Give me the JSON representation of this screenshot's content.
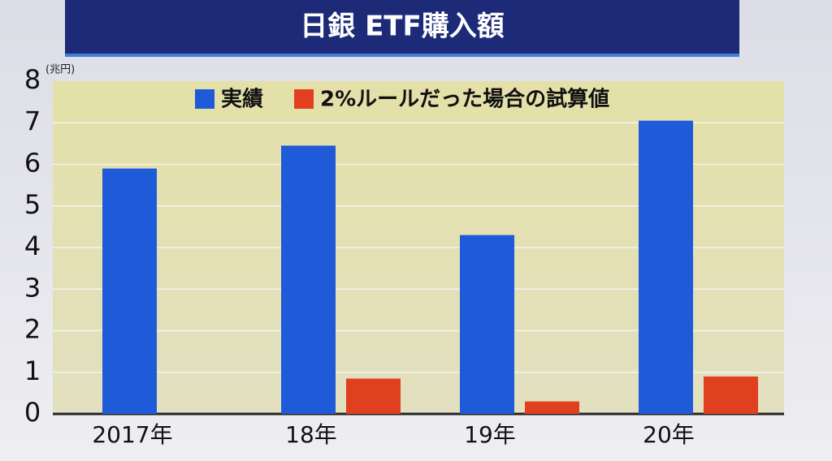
{
  "chart_data": {
    "type": "bar",
    "title": "日銀 ETF購入額",
    "y_unit": "(兆円)",
    "categories": [
      "2017年",
      "18年",
      "19年",
      "20年"
    ],
    "series": [
      {
        "name": "実績",
        "color": "#1f5ad8",
        "values": [
          5.9,
          6.45,
          4.3,
          7.05
        ]
      },
      {
        "name": "2%ルールだった場合の試算値",
        "color": "#e04020",
        "values": [
          null,
          0.85,
          0.3,
          0.9
        ]
      }
    ],
    "ylim": [
      0,
      8
    ],
    "yticks": [
      0,
      1,
      2,
      3,
      4,
      5,
      6,
      7,
      8
    ],
    "grid": true
  }
}
